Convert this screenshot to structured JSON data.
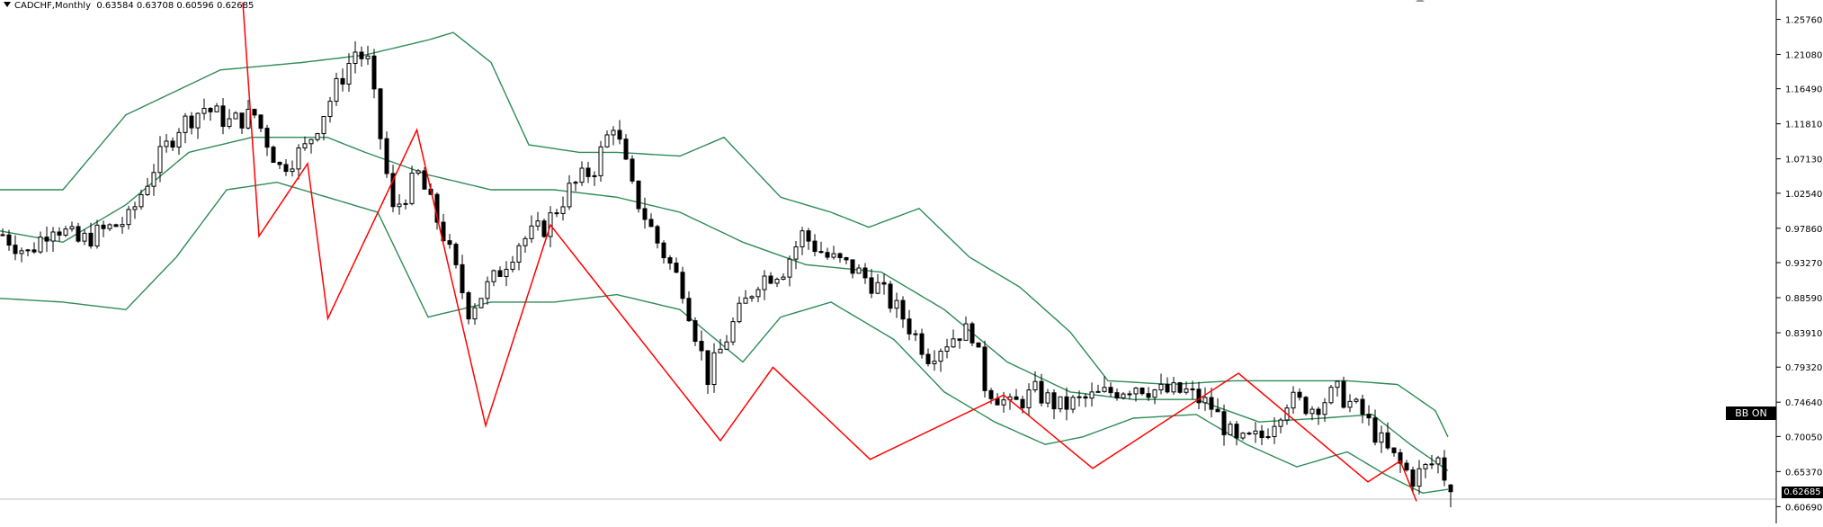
{
  "header": {
    "symbol": "CADCHF,Monthly",
    "ohlc": "0.63584 0.63708 0.60596 0.62685"
  },
  "indicator_badge": "BB ON",
  "current_price_label": "0.62685",
  "colors": {
    "background": "#ffffff",
    "candle": "#000000",
    "bollinger": "#2e8b57",
    "zigzag": "#ff0000",
    "axis": "#000000"
  },
  "chart_data": {
    "type": "candlestick",
    "symbol": "CADCHF",
    "timeframe": "Monthly",
    "ylim": [
      0.5845,
      1.2834
    ],
    "y_ticks": [
      "1.25760",
      "1.21080",
      "1.16490",
      "1.11810",
      "1.07130",
      "1.02540",
      "0.97860",
      "0.93270",
      "0.88590",
      "0.83910",
      "0.79320",
      "0.74640",
      "0.70050",
      "0.65370",
      "0.60690"
    ],
    "current_price": 0.62685,
    "last_bar": {
      "open": 0.63584,
      "high": 0.63708,
      "low": 0.60596,
      "close": 0.62685
    },
    "approx_bar_count": 216,
    "close_path": [
      [
        0,
        0.97
      ],
      [
        4,
        0.945
      ],
      [
        8,
        0.985
      ],
      [
        12,
        0.96
      ],
      [
        16,
        0.975
      ],
      [
        20,
        0.99
      ],
      [
        24,
        1.06
      ],
      [
        28,
        1.115
      ],
      [
        32,
        1.14
      ],
      [
        36,
        1.12
      ],
      [
        40,
        1.13
      ],
      [
        44,
        1.06
      ],
      [
        48,
        1.085
      ],
      [
        52,
        1.15
      ],
      [
        56,
        1.215
      ],
      [
        58,
        1.2
      ],
      [
        62,
        1.0
      ],
      [
        66,
        1.05
      ],
      [
        70,
        0.97
      ],
      [
        74,
        0.87
      ],
      [
        78,
        0.91
      ],
      [
        82,
        0.96
      ],
      [
        86,
        0.98
      ],
      [
        90,
        1.03
      ],
      [
        94,
        1.06
      ],
      [
        97,
        1.12
      ],
      [
        100,
        1.03
      ],
      [
        104,
        0.96
      ],
      [
        108,
        0.9
      ],
      [
        112,
        0.78
      ],
      [
        116,
        0.85
      ],
      [
        120,
        0.91
      ],
      [
        124,
        0.925
      ],
      [
        127,
        0.97
      ],
      [
        131,
        0.94
      ],
      [
        135,
        0.925
      ],
      [
        139,
        0.9
      ],
      [
        143,
        0.86
      ],
      [
        147,
        0.81
      ],
      [
        152,
        0.84
      ],
      [
        154,
        0.84
      ],
      [
        156,
        0.77
      ],
      [
        160,
        0.74
      ],
      [
        164,
        0.76
      ],
      [
        168,
        0.74
      ],
      [
        172,
        0.75
      ],
      [
        176,
        0.76
      ],
      [
        180,
        0.77
      ],
      [
        184,
        0.76
      ],
      [
        188,
        0.76
      ],
      [
        192,
        0.74
      ],
      [
        196,
        0.69
      ],
      [
        200,
        0.7
      ],
      [
        204,
        0.75
      ],
      [
        208,
        0.74
      ],
      [
        212,
        0.76
      ],
      [
        216,
        0.73
      ],
      [
        220,
        0.68
      ],
      [
        224,
        0.645
      ],
      [
        228,
        0.67
      ],
      [
        230,
        0.627
      ]
    ],
    "bollinger_bands": {
      "period": 20,
      "upper": [
        [
          0,
          1.03
        ],
        [
          10,
          1.03
        ],
        [
          20,
          1.13
        ],
        [
          35,
          1.19
        ],
        [
          48,
          1.2
        ],
        [
          58,
          1.21
        ],
        [
          68,
          1.23
        ],
        [
          72,
          1.24
        ],
        [
          78,
          1.2
        ],
        [
          84,
          1.09
        ],
        [
          92,
          1.08
        ],
        [
          98,
          1.08
        ],
        [
          108,
          1.075
        ],
        [
          115,
          1.1
        ],
        [
          124,
          1.02
        ],
        [
          132,
          1.0
        ],
        [
          138,
          0.98
        ],
        [
          146,
          1.005
        ],
        [
          154,
          0.94
        ],
        [
          162,
          0.9
        ],
        [
          170,
          0.84
        ],
        [
          176,
          0.775
        ],
        [
          186,
          0.77
        ],
        [
          196,
          0.775
        ],
        [
          206,
          0.775
        ],
        [
          214,
          0.775
        ],
        [
          222,
          0.77
        ],
        [
          228,
          0.735
        ],
        [
          230,
          0.7
        ]
      ],
      "middle": [
        [
          0,
          0.975
        ],
        [
          10,
          0.96
        ],
        [
          20,
          1.01
        ],
        [
          30,
          1.08
        ],
        [
          40,
          1.1
        ],
        [
          52,
          1.1
        ],
        [
          58,
          1.08
        ],
        [
          68,
          1.05
        ],
        [
          78,
          1.03
        ],
        [
          88,
          1.03
        ],
        [
          98,
          1.02
        ],
        [
          108,
          1.0
        ],
        [
          118,
          0.96
        ],
        [
          128,
          0.93
        ],
        [
          140,
          0.92
        ],
        [
          150,
          0.87
        ],
        [
          160,
          0.8
        ],
        [
          170,
          0.76
        ],
        [
          180,
          0.75
        ],
        [
          190,
          0.75
        ],
        [
          200,
          0.72
        ],
        [
          210,
          0.725
        ],
        [
          218,
          0.73
        ],
        [
          224,
          0.69
        ],
        [
          230,
          0.655
        ]
      ],
      "lower": [
        [
          0,
          0.885
        ],
        [
          10,
          0.88
        ],
        [
          20,
          0.87
        ],
        [
          28,
          0.94
        ],
        [
          36,
          1.03
        ],
        [
          44,
          1.04
        ],
        [
          52,
          1.02
        ],
        [
          60,
          1.0
        ],
        [
          68,
          0.86
        ],
        [
          78,
          0.88
        ],
        [
          88,
          0.88
        ],
        [
          98,
          0.89
        ],
        [
          108,
          0.87
        ],
        [
          118,
          0.8
        ],
        [
          124,
          0.86
        ],
        [
          132,
          0.88
        ],
        [
          142,
          0.83
        ],
        [
          150,
          0.76
        ],
        [
          158,
          0.72
        ],
        [
          166,
          0.69
        ],
        [
          172,
          0.7
        ],
        [
          180,
          0.725
        ],
        [
          190,
          0.73
        ],
        [
          198,
          0.69
        ],
        [
          206,
          0.66
        ],
        [
          214,
          0.68
        ],
        [
          220,
          0.65
        ],
        [
          226,
          0.625
        ],
        [
          230,
          0.63
        ]
      ]
    },
    "zigzag": [
      [
        60,
        1.28
      ],
      [
        64,
        0.968
      ],
      [
        76,
        1.065
      ],
      [
        81,
        0.858
      ],
      [
        103,
        1.11
      ],
      [
        120,
        0.715
      ],
      [
        136,
        0.983
      ],
      [
        178,
        0.695
      ],
      [
        191,
        0.793
      ],
      [
        215,
        0.67
      ],
      [
        248,
        0.756
      ],
      [
        270,
        0.658
      ],
      [
        306,
        0.785
      ],
      [
        338,
        0.64
      ],
      [
        346,
        0.668
      ],
      [
        350,
        0.614
      ]
    ]
  }
}
